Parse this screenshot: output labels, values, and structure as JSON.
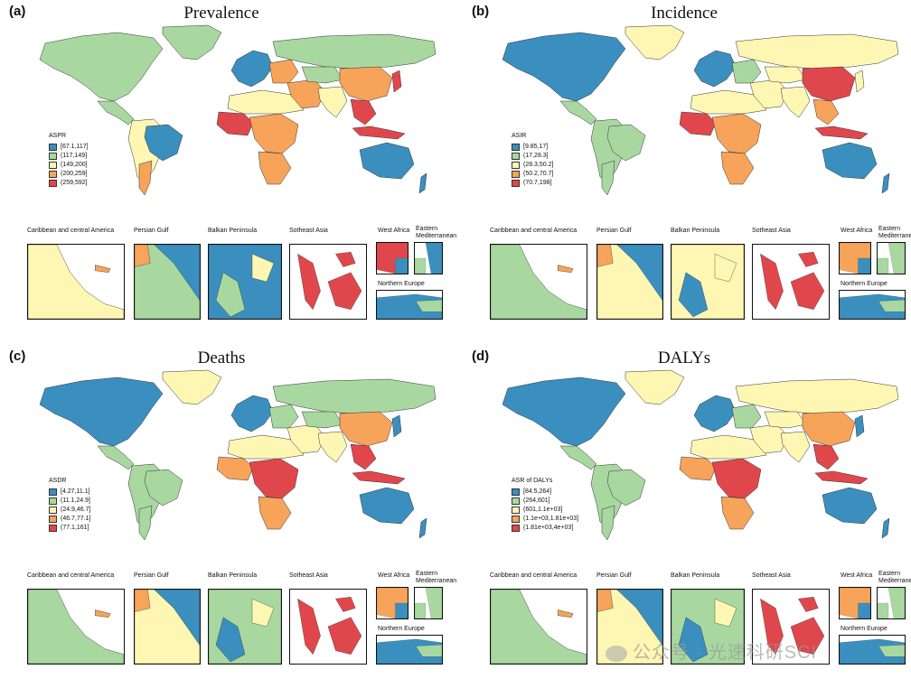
{
  "colors": {
    "c1": "#3a8fbf",
    "c2": "#a8d8a0",
    "c3": "#fdf7b3",
    "c4": "#f7a35a",
    "c5": "#e0474c",
    "ocean": "#ffffff"
  },
  "inset_labels": {
    "caribbean": "Caribbean and central America",
    "persian": "Persian Gulf",
    "balkan": "Balkan Peninsula",
    "sotheast": "Sotheast Asia",
    "westafrica": "West Africa",
    "eastmed": "Eastern\nMediterranean",
    "northeu": "Northern Europe"
  },
  "panels": [
    {
      "label": "(a)",
      "title": "Prevalence",
      "legend_title": "ASPR",
      "legend": [
        "[67.1,117]",
        "(117,149]",
        "(149,200]",
        "(200,259]",
        "(259,592]"
      ],
      "fills": {
        "na": "c2",
        "green": "c2",
        "ca": "c2",
        "sa": "c3",
        "brazil": "c1",
        "arg": "c4",
        "eu": "c1",
        "eu_east": "c4",
        "russia": "c2",
        "africa_n": "c3",
        "africa_w": "c5",
        "africa_c": "c4",
        "africa_s": "c4",
        "mideast": "c4",
        "centasia": "c2",
        "india": "c3",
        "china": "c4",
        "seasia": "c5",
        "indo": "c5",
        "aus": "c1",
        "nz": "c1",
        "japan": "c5"
      },
      "insets": {
        "caribbean": "c3",
        "persian": "c2",
        "balkan": "c1",
        "sotheast": "c5",
        "westafrica": "c5",
        "eastmed": "c1",
        "northeu": "c1"
      }
    },
    {
      "label": "(b)",
      "title": "Incidence",
      "legend_title": "ASIR",
      "legend": [
        "[9.85,17]",
        "(17,28.3]",
        "(28.3,50.2]",
        "(50.2,70.7]",
        "(70.7,198]"
      ],
      "fills": {
        "na": "c1",
        "green": "c3",
        "ca": "c2",
        "sa": "c2",
        "brazil": "c2",
        "arg": "c2",
        "eu": "c1",
        "eu_east": "c2",
        "russia": "c3",
        "africa_n": "c3",
        "africa_w": "c5",
        "africa_c": "c4",
        "africa_s": "c4",
        "mideast": "c3",
        "centasia": "c3",
        "india": "c3",
        "china": "c5",
        "seasia": "c4",
        "indo": "c5",
        "aus": "c1",
        "nz": "c1",
        "japan": "c3"
      },
      "insets": {
        "caribbean": "c2",
        "persian": "c3",
        "balkan": "c3",
        "sotheast": "c5",
        "westafrica": "c4",
        "eastmed": "c2",
        "northeu": "c1"
      }
    },
    {
      "label": "(c)",
      "title": "Deaths",
      "legend_title": "ASDR",
      "legend": [
        "[4.27,11.1]",
        "(11.1,24.9]",
        "(24.9,46.7]",
        "(46.7,77.1]",
        "(77.1,161]"
      ],
      "fills": {
        "na": "c1",
        "green": "c3",
        "ca": "c2",
        "sa": "c2",
        "brazil": "c2",
        "arg": "c2",
        "eu": "c1",
        "eu_east": "c2",
        "russia": "c2",
        "africa_n": "c3",
        "africa_w": "c4",
        "africa_c": "c5",
        "africa_s": "c4",
        "mideast": "c3",
        "centasia": "c2",
        "india": "c3",
        "china": "c4",
        "seasia": "c5",
        "indo": "c5",
        "aus": "c1",
        "nz": "c1",
        "japan": "c1"
      },
      "insets": {
        "caribbean": "c2",
        "persian": "c3",
        "balkan": "c2",
        "sotheast": "c5",
        "westafrica": "c4",
        "eastmed": "c2",
        "northeu": "c1"
      }
    },
    {
      "label": "(d)",
      "title": "DALYs",
      "legend_title": "ASR of DALYs",
      "legend": [
        "[84.5,264]",
        "(264,601]",
        "(601,1.1e+03]",
        "(1.1e+03,1.81e+03]",
        "(1.81e+03,4e+03]"
      ],
      "fills": {
        "na": "c1",
        "green": "c3",
        "ca": "c2",
        "sa": "c2",
        "brazil": "c2",
        "arg": "c2",
        "eu": "c1",
        "eu_east": "c2",
        "russia": "c3",
        "africa_n": "c3",
        "africa_w": "c4",
        "africa_c": "c5",
        "africa_s": "c4",
        "mideast": "c3",
        "centasia": "c3",
        "india": "c3",
        "china": "c4",
        "seasia": "c5",
        "indo": "c5",
        "aus": "c1",
        "nz": "c1",
        "japan": "c1"
      },
      "insets": {
        "caribbean": "c2",
        "persian": "c3",
        "balkan": "c2",
        "sotheast": "c5",
        "westafrica": "c4",
        "eastmed": "c2",
        "northeu": "c1"
      }
    }
  ],
  "watermark": "公众号 · 光速科研SCI"
}
